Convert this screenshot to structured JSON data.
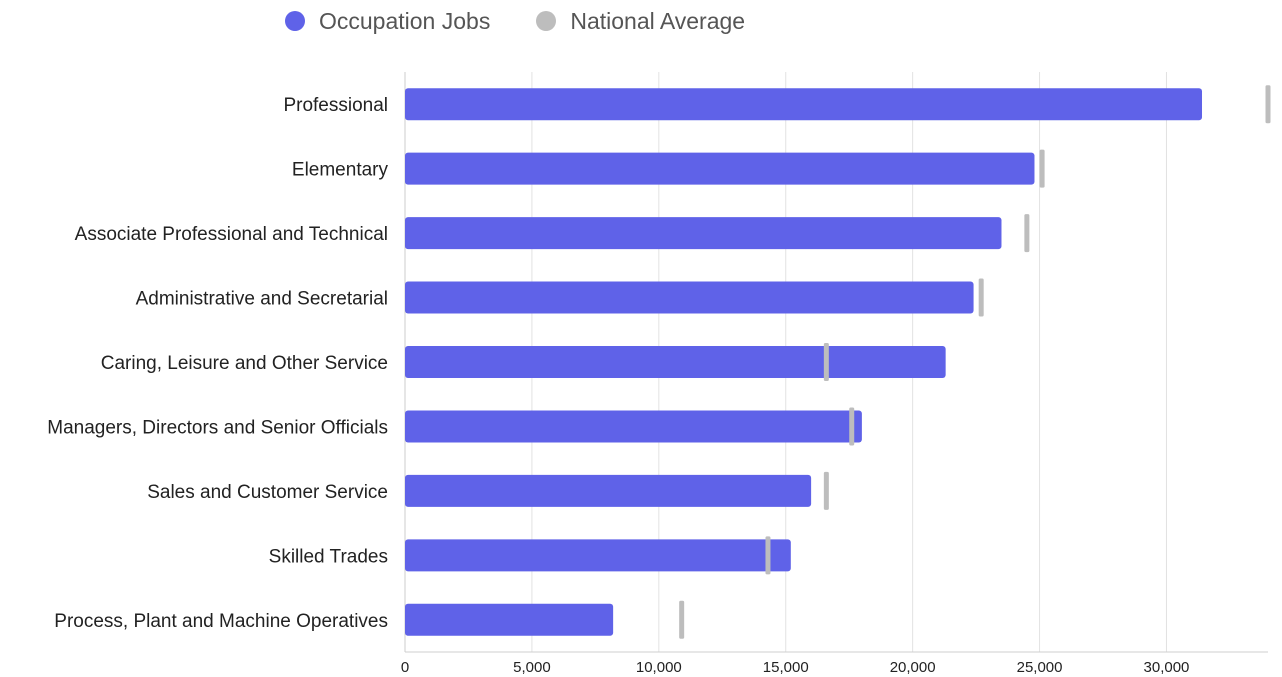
{
  "chart_data": {
    "type": "bar",
    "orientation": "horizontal",
    "categories": [
      "Professional",
      "Elementary",
      "Associate Professional and Technical",
      "Administrative and Secretarial",
      "Caring, Leisure and Other Service",
      "Managers, Directors and Senior Officials",
      "Sales and Customer Service",
      "Skilled Trades",
      "Process, Plant and Machine Operatives"
    ],
    "series": [
      {
        "name": "Occupation Jobs",
        "color": "#5f62e8",
        "mark": "bar",
        "values": [
          31400,
          24800,
          23500,
          22400,
          21300,
          18000,
          16000,
          15200,
          8200
        ]
      },
      {
        "name": "National Average",
        "color": "#bdbdbd",
        "mark": "tick",
        "values": [
          34000,
          25100,
          24500,
          22700,
          16600,
          17600,
          16600,
          14300,
          10900
        ]
      }
    ],
    "xlim": [
      0,
      34000
    ],
    "xticks": [
      0,
      5000,
      10000,
      15000,
      20000,
      25000,
      30000
    ],
    "xtick_labels": [
      "0",
      "5,000",
      "10,000",
      "15,000",
      "20,000",
      "25,000",
      "30,000"
    ],
    "grid": "vertical",
    "legend": "top",
    "title": "",
    "xlabel": "",
    "ylabel": ""
  }
}
